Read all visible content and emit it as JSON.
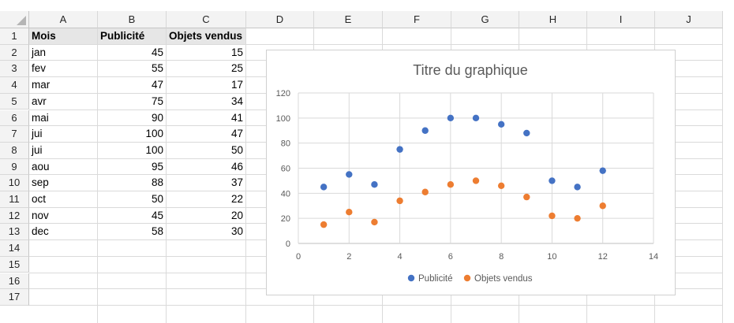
{
  "columns": [
    "A",
    "B",
    "C",
    "D",
    "E",
    "F",
    "G",
    "H",
    "I",
    "J"
  ],
  "rows": [
    "1",
    "2",
    "3",
    "4",
    "5",
    "6",
    "7",
    "8",
    "9",
    "10",
    "11",
    "12",
    "13",
    "14",
    "15",
    "16",
    "17"
  ],
  "table": {
    "headers": [
      "Mois",
      "Publicité",
      "Objets vendus"
    ],
    "rows": [
      [
        "jan",
        "45",
        "15"
      ],
      [
        "fev",
        "55",
        "25"
      ],
      [
        "mar",
        "47",
        "17"
      ],
      [
        "avr",
        "75",
        "34"
      ],
      [
        "mai",
        "90",
        "41"
      ],
      [
        "jui",
        "100",
        "47"
      ],
      [
        "jui",
        "100",
        "50"
      ],
      [
        "aou",
        "95",
        "46"
      ],
      [
        "sep",
        "88",
        "37"
      ],
      [
        "oct",
        "50",
        "22"
      ],
      [
        "nov",
        "45",
        "20"
      ],
      [
        "dec",
        "58",
        "30"
      ]
    ]
  },
  "chart_data": {
    "type": "scatter",
    "title": "Titre du graphique",
    "xlim": [
      0,
      14
    ],
    "ylim": [
      0,
      120
    ],
    "x_ticks": [
      "0",
      "2",
      "4",
      "6",
      "8",
      "10",
      "12",
      "14"
    ],
    "y_ticks": [
      "0",
      "20",
      "40",
      "60",
      "80",
      "100",
      "120"
    ],
    "grid": true,
    "legend": "bottom",
    "series": [
      {
        "name": "Publicité",
        "color": "#4472c4",
        "x": [
          1,
          2,
          3,
          4,
          5,
          6,
          7,
          8,
          9,
          10,
          11,
          12
        ],
        "y": [
          45,
          55,
          47,
          75,
          90,
          100,
          100,
          95,
          88,
          50,
          45,
          58
        ]
      },
      {
        "name": "Objets vendus",
        "color": "#ed7d31",
        "x": [
          1,
          2,
          3,
          4,
          5,
          6,
          7,
          8,
          9,
          10,
          11,
          12
        ],
        "y": [
          15,
          25,
          17,
          34,
          41,
          47,
          50,
          46,
          37,
          22,
          20,
          30
        ]
      }
    ]
  }
}
